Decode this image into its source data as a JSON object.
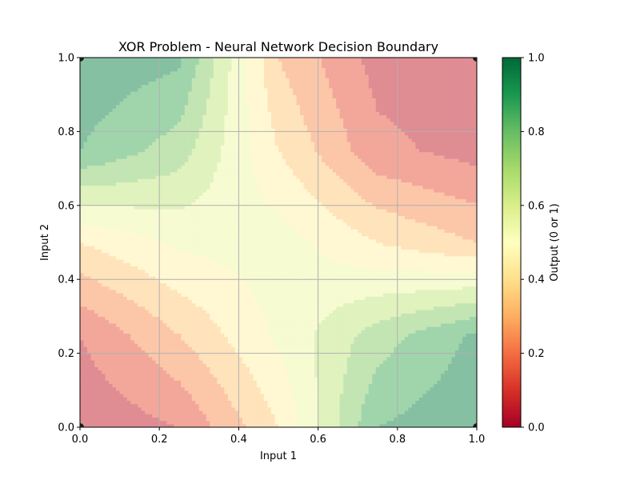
{
  "chart_data": {
    "type": "heatmap",
    "subtype": "filled-contour",
    "title": "XOR Problem - Neural Network Decision Boundary",
    "xlabel": "Input 1",
    "ylabel": "Input 2",
    "xlim": [
      0,
      1
    ],
    "ylim": [
      0,
      1
    ],
    "x_ticks": [
      "0.0",
      "0.2",
      "0.4",
      "0.6",
      "0.8",
      "1.0"
    ],
    "y_ticks": [
      "0.0",
      "0.2",
      "0.4",
      "0.6",
      "0.8",
      "1.0"
    ],
    "grid": true,
    "colormap": "RdYlGn",
    "fill_opacity": 0.5,
    "contour_levels": [
      0.0,
      0.1,
      0.2,
      0.3,
      0.4,
      0.5,
      0.6,
      0.7,
      0.8,
      0.9,
      1.0
    ],
    "colorbar": {
      "label": "Output (0 or 1)",
      "range": [
        0,
        1
      ],
      "ticks": [
        "0.0",
        "0.2",
        "0.4",
        "0.6",
        "0.8",
        "1.0"
      ]
    },
    "output_grid": {
      "x": [
        0.0,
        0.25,
        0.5,
        0.75,
        1.0
      ],
      "y": [
        0.0,
        0.25,
        0.5,
        0.75,
        1.0
      ],
      "z": [
        [
          0.02,
          0.1,
          0.4,
          0.9,
          0.98
        ],
        [
          0.1,
          0.3,
          0.52,
          0.75,
          0.92
        ],
        [
          0.4,
          0.52,
          0.55,
          0.4,
          0.3
        ],
        [
          0.9,
          0.75,
          0.4,
          0.13,
          0.06
        ],
        [
          0.98,
          0.92,
          0.3,
          0.06,
          0.02
        ]
      ]
    },
    "training_points": [
      {
        "x": 0,
        "y": 0,
        "label": 0
      },
      {
        "x": 0,
        "y": 1,
        "label": 1
      },
      {
        "x": 1,
        "y": 0,
        "label": 1
      },
      {
        "x": 1,
        "y": 1,
        "label": 0
      }
    ],
    "marker_color": "#1a1a1a",
    "grid_color": "#b0b0b0"
  }
}
